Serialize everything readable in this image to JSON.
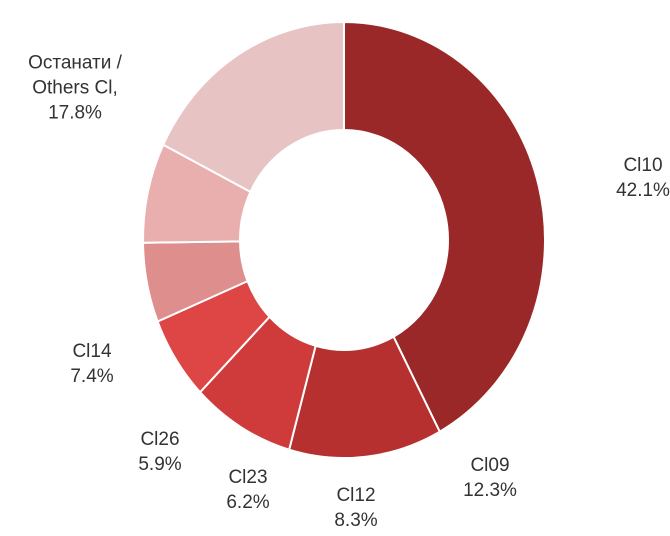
{
  "chart_data": {
    "type": "donut",
    "categories": [
      "Cl10",
      "Cl09",
      "Cl12",
      "Cl23",
      "Cl26",
      "Cl14",
      "Останати / Others Cl,"
    ],
    "values": [
      42.1,
      12.3,
      8.3,
      6.2,
      5.9,
      7.4,
      17.8
    ],
    "value_labels": [
      "42.1%",
      "12.3%",
      "8.3%",
      "6.2%",
      "5.9%",
      "7.4%",
      "17.8%"
    ],
    "colors": [
      "#9a2828",
      "#b5302f",
      "#cf3a3a",
      "#de4545",
      "#df8e8e",
      "#e9afaf",
      "#e8c3c3"
    ]
  }
}
